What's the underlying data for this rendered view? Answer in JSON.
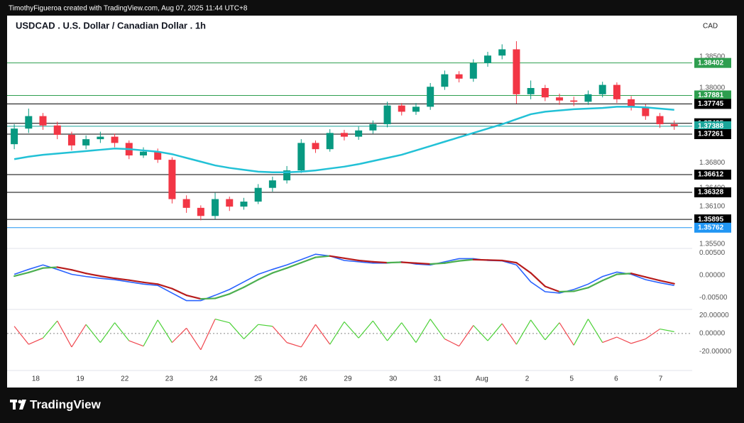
{
  "header": {
    "credit": "TimothyFigueroa created with TradingView.com, Aug 07, 2025 11:44 UTC+8"
  },
  "footer": {
    "brand": "TradingView"
  },
  "chart_data": {
    "type": "candlestick",
    "title": "USDCAD . U.S. Dollar / Canadian Dollar . 1h",
    "currency": "CAD",
    "up_color": "#089981",
    "down_color": "#f23645",
    "open": [
      1.371,
      1.3735,
      1.3755,
      1.374,
      1.3725,
      1.3708,
      1.3718,
      1.3722,
      1.3712,
      1.3692,
      1.3698,
      1.3685,
      1.3622,
      1.3608,
      1.3595,
      1.3622,
      1.361,
      1.3618,
      1.364,
      1.3652,
      1.3668,
      1.3712,
      1.3702,
      1.3728,
      1.3722,
      1.3732,
      1.3742,
      1.3772,
      1.3762,
      1.377,
      1.3802,
      1.3822,
      1.3815,
      1.384,
      1.3852,
      1.3862,
      1.379,
      1.38,
      1.3785,
      1.378,
      1.3778,
      1.379,
      1.3805,
      1.3782,
      1.377,
      1.3755,
      1.3742
    ],
    "high": [
      1.3742,
      1.3767,
      1.376,
      1.3746,
      1.373,
      1.3724,
      1.373,
      1.3727,
      1.3716,
      1.3705,
      1.3703,
      1.3689,
      1.3628,
      1.3612,
      1.3632,
      1.3626,
      1.3624,
      1.3646,
      1.3658,
      1.3675,
      1.3718,
      1.3716,
      1.3734,
      1.3733,
      1.3738,
      1.3748,
      1.3778,
      1.3776,
      1.3776,
      1.3808,
      1.3828,
      1.3827,
      1.3846,
      1.3858,
      1.387,
      1.3875,
      1.3812,
      1.3805,
      1.3791,
      1.3786,
      1.3796,
      1.381,
      1.3809,
      1.3787,
      1.3774,
      1.376,
      1.3748
    ],
    "low": [
      1.3702,
      1.3728,
      1.3733,
      1.3718,
      1.37,
      1.3702,
      1.3712,
      1.3705,
      1.3686,
      1.3688,
      1.368,
      1.3615,
      1.36,
      1.3588,
      1.359,
      1.3603,
      1.3605,
      1.3614,
      1.3634,
      1.3647,
      1.3664,
      1.3696,
      1.3698,
      1.3716,
      1.3717,
      1.3727,
      1.3737,
      1.3756,
      1.3757,
      1.3765,
      1.3797,
      1.3809,
      1.381,
      1.3834,
      1.3846,
      1.3775,
      1.3782,
      1.3779,
      1.3773,
      1.3771,
      1.3773,
      1.3785,
      1.3776,
      1.3764,
      1.3749,
      1.3736,
      1.3733
    ],
    "close": [
      1.3735,
      1.3755,
      1.374,
      1.3725,
      1.3708,
      1.3718,
      1.3722,
      1.3712,
      1.3692,
      1.3698,
      1.3685,
      1.3622,
      1.3608,
      1.3595,
      1.3622,
      1.361,
      1.3618,
      1.364,
      1.3652,
      1.3668,
      1.3712,
      1.3702,
      1.3728,
      1.3722,
      1.3732,
      1.3742,
      1.3772,
      1.3762,
      1.377,
      1.3802,
      1.3822,
      1.3815,
      1.384,
      1.3852,
      1.3862,
      1.379,
      1.38,
      1.3785,
      1.378,
      1.3778,
      1.379,
      1.3805,
      1.3782,
      1.377,
      1.3755,
      1.3742,
      1.3739
    ],
    "ma": {
      "color": "#22c1d6",
      "values": [
        1.3686,
        1.369,
        1.3693,
        1.3695,
        1.3697,
        1.3699,
        1.3701,
        1.3703,
        1.3702,
        1.37,
        1.3698,
        1.3694,
        1.3688,
        1.3682,
        1.3676,
        1.3672,
        1.3669,
        1.3666,
        1.3665,
        1.3665,
        1.3666,
        1.3668,
        1.3671,
        1.3674,
        1.3678,
        1.3683,
        1.3688,
        1.3693,
        1.37,
        1.3707,
        1.3714,
        1.3721,
        1.3728,
        1.3735,
        1.3742,
        1.375,
        1.3758,
        1.3762,
        1.3764,
        1.3766,
        1.3767,
        1.3768,
        1.377,
        1.377,
        1.3769,
        1.3767,
        1.3765
      ]
    },
    "levels": [
      {
        "value": 1.38402,
        "color": "#2e9e4f"
      },
      {
        "value": 1.37881,
        "color": "#2e9e4f"
      },
      {
        "value": 1.37745,
        "color": "#000000"
      },
      {
        "value": 1.37435,
        "color": "#000000"
      },
      {
        "value": 1.37388,
        "color": "#1aa59a"
      },
      {
        "value": 1.37261,
        "color": "#000000"
      },
      {
        "value": 1.36612,
        "color": "#000000"
      },
      {
        "value": 1.36328,
        "color": "#000000"
      },
      {
        "value": 1.35895,
        "color": "#000000"
      },
      {
        "value": 1.35762,
        "color": "#2196f3"
      }
    ],
    "ylim": [
      1.3543,
      1.3916
    ],
    "yticks": [
      {
        "value": 1.385,
        "label": "1.38500"
      },
      {
        "value": 1.38,
        "label": "1.38000"
      },
      {
        "value": 1.368,
        "label": "1.36800"
      },
      {
        "value": 1.364,
        "label": "1.36400"
      },
      {
        "value": 1.361,
        "label": "1.36100"
      },
      {
        "value": 1.355,
        "label": "1.35500"
      }
    ],
    "xlim": [
      -0.5,
      47.25
    ],
    "xticks": [
      {
        "value": 1.5,
        "label": "18"
      },
      {
        "value": 4.6,
        "label": "19"
      },
      {
        "value": 7.7,
        "label": "22"
      },
      {
        "value": 10.8,
        "label": "23"
      },
      {
        "value": 13.9,
        "label": "24"
      },
      {
        "value": 17,
        "label": "25"
      },
      {
        "value": 20.15,
        "label": "26"
      },
      {
        "value": 23.25,
        "label": "29"
      },
      {
        "value": 26.4,
        "label": "30"
      },
      {
        "value": 29.5,
        "label": "31"
      },
      {
        "value": 32.6,
        "label": "Aug"
      },
      {
        "value": 35.75,
        "label": "2"
      },
      {
        "value": 38.85,
        "label": "5"
      },
      {
        "value": 41.95,
        "label": "6"
      },
      {
        "value": 45.05,
        "label": "7"
      }
    ],
    "macd_pane": {
      "ylim": [
        -0.00767,
        0.006
      ],
      "yticks": [
        {
          "value": 0.005,
          "label": "0.00500"
        },
        {
          "value": 0,
          "label": "0.00000"
        },
        {
          "value": -0.005,
          "label": "-0.00500"
        }
      ],
      "macd": {
        "color": "#2962ff",
        "values": [
          0.0002,
          0.0013,
          0.0023,
          0.0013,
          0.0002,
          -0.0003,
          -0.0007,
          -0.001,
          -0.0015,
          -0.002,
          -0.0023,
          -0.004,
          -0.0057,
          -0.0057,
          -0.0045,
          -0.0032,
          -0.0015,
          0.0002,
          0.0013,
          0.0023,
          0.0035,
          0.0047,
          0.0043,
          0.0033,
          0.003,
          0.0027,
          0.0027,
          0.003,
          0.0025,
          0.0023,
          0.003,
          0.0037,
          0.0037,
          0.0033,
          0.0032,
          0.0023,
          -0.0015,
          -0.0037,
          -0.004,
          -0.0032,
          -0.002,
          -0.0003,
          0.0007,
          0.0002,
          -0.001,
          -0.0017,
          -0.0023
        ]
      },
      "signal": {
        "up_color": "#4caf50",
        "down_color": "#b71c1c",
        "values": [
          -0.0002,
          0.0006,
          0.0016,
          0.0018,
          0.0012,
          0.0004,
          -0.0002,
          -0.0007,
          -0.0011,
          -0.0016,
          -0.002,
          -0.003,
          -0.0045,
          -0.0053,
          -0.0052,
          -0.0042,
          -0.0027,
          -0.001,
          0.0005,
          0.0016,
          0.0028,
          0.004,
          0.0043,
          0.0038,
          0.0033,
          0.003,
          0.0028,
          0.0029,
          0.0027,
          0.0025,
          0.0027,
          0.0032,
          0.0035,
          0.0034,
          0.0033,
          0.0028,
          0.0005,
          -0.0025,
          -0.0037,
          -0.0036,
          -0.0028,
          -0.0012,
          0.0002,
          0.0004,
          -0.0004,
          -0.0012,
          -0.0019
        ]
      }
    },
    "osc_pane": {
      "ylim": [
        -41,
        26.7
      ],
      "yticks": [
        {
          "value": 20,
          "label": "20.00000"
        },
        {
          "value": 0,
          "label": "0.00000"
        },
        {
          "value": -20,
          "label": "-20.00000"
        }
      ],
      "pos_color": "#4cd137",
      "neg_color": "#f0474f",
      "values": [
        8,
        -12,
        -5,
        14,
        -15,
        10,
        -10,
        12,
        -8,
        -14,
        15,
        -10,
        6,
        -18,
        16,
        12,
        -6,
        10,
        8,
        -10,
        -15,
        10,
        -12,
        13,
        -5,
        14,
        -8,
        12,
        -10,
        16,
        -6,
        -14,
        9,
        -8,
        11,
        -12,
        15,
        -7,
        12,
        -13,
        16,
        -10,
        -4,
        -11,
        -6,
        5,
        2
      ]
    }
  }
}
